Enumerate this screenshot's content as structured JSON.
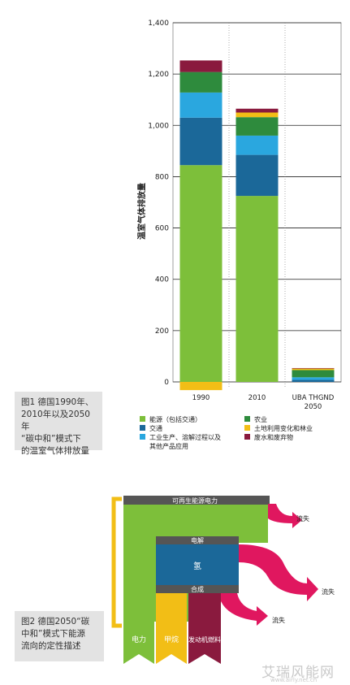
{
  "chart_data": {
    "type": "bar",
    "stacked": true,
    "categories": [
      "1990",
      "2010",
      "UBA THGND\n2050"
    ],
    "ylabel": "温室气体排放量",
    "ylim": [
      0,
      1400
    ],
    "yticks": [
      "0",
      "200",
      "400",
      "600",
      "800",
      "1,000",
      "1,200",
      "1,400"
    ],
    "grid": true,
    "series": [
      {
        "name": "能源（包括交通）",
        "color": "#7dbf3a",
        "values": [
          845,
          725,
          0
        ]
      },
      {
        "name": "交通",
        "color": "#1b6899",
        "values": [
          185,
          160,
          8
        ]
      },
      {
        "name": "工业生产、溶解过程以及其他产品应用",
        "color": "#2aa7df",
        "values": [
          98,
          75,
          10
        ]
      },
      {
        "name": "农业",
        "color": "#2e8b3d",
        "values": [
          80,
          72,
          28
        ]
      },
      {
        "name": "土地利用变化和林业",
        "color": "#f2be16",
        "values": [
          -32,
          18,
          6
        ]
      },
      {
        "name": "废水和废弃物",
        "color": "#8a1a3e",
        "values": [
          45,
          15,
          2
        ]
      }
    ],
    "legend_position": "bottom"
  },
  "caption1": {
    "line1": "图1 德国1990年、",
    "line2": "2010年以及2050年",
    "line3": "“碳中和”模式下",
    "line4": "的温室气体排放量"
  },
  "diagram": {
    "renewable_label": "可再生能源电力",
    "electrolysis_label": "电解",
    "hydrogen_label": "氢",
    "synthesis_label": "合成",
    "loss_label": "流失",
    "out_electricity": "电力",
    "out_methane": "甲烷",
    "out_fuel": "发动机燃料"
  },
  "caption2": {
    "line1": "图2 德国2050“碳",
    "line2": "中和”模式下能源",
    "line3": "流向的定性描述"
  },
  "watermark": {
    "text": "艾瑞风能网",
    "url": "www.airly.net.cn"
  }
}
